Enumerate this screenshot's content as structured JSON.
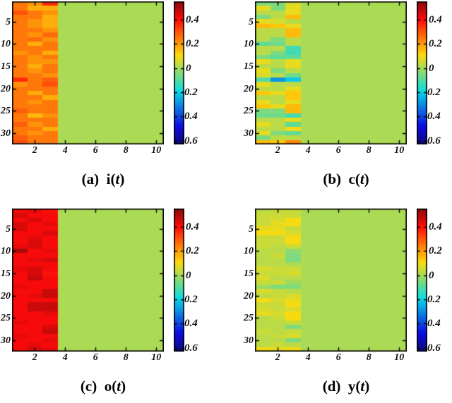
{
  "figure": {
    "background": "#ffffff",
    "colormap": "jet",
    "caxis": {
      "vmin": -0.63,
      "vmax": 0.55
    },
    "axes": {
      "x_ticks": [
        "2",
        "4",
        "6",
        "8",
        "10"
      ],
      "x_tick_values": [
        2,
        4,
        6,
        8,
        10
      ],
      "x_range": [
        0.5,
        10.5
      ],
      "y_ticks": [
        "5",
        "10",
        "15",
        "20",
        "25",
        "30"
      ],
      "y_tick_values": [
        5,
        10,
        15,
        20,
        25,
        30
      ],
      "y_range": [
        0.5,
        32.5
      ],
      "tick_color": "#000000",
      "frame_color": "#000000"
    },
    "colorbar": {
      "tick_labels": [
        "0.4",
        "0.2",
        "0",
        "-0.2",
        "-0.4",
        "-0.6"
      ],
      "tick_values": [
        0.4,
        0.2,
        0,
        -0.2,
        -0.4,
        -0.6
      ]
    },
    "zero_color_hint": "#a8d050",
    "grid": false
  },
  "chart_data": [
    {
      "type": "heatmap",
      "id": "a",
      "caption_text": "(a) i(t)",
      "caption": {
        "prefix": "(a)",
        "symbol": "i",
        "open": "(",
        "var": "t",
        "close": ")"
      },
      "n_rows": 32,
      "n_cols": 10,
      "fill_value": 0,
      "note": "columns 4-10 uniformly 0 (green); values below are columns 1-3 per row",
      "first3cols": [
        [
          0.24,
          0.21,
          0.36
        ],
        [
          0.24,
          0.18,
          0.17
        ],
        [
          0.31,
          0.24,
          0.21
        ],
        [
          0.25,
          0.24,
          0.17
        ],
        [
          0.24,
          0.21,
          0.18
        ],
        [
          0.24,
          0.2,
          0.17
        ],
        [
          0.24,
          0.24,
          0.2
        ],
        [
          0.24,
          0.2,
          0.26
        ],
        [
          0.24,
          0.27,
          0.21
        ],
        [
          0.24,
          0.18,
          0.24
        ],
        [
          0.24,
          0.25,
          0.24
        ],
        [
          0.21,
          0.24,
          0.17
        ],
        [
          0.24,
          0.2,
          0.24
        ],
        [
          0.25,
          0.21,
          0.2
        ],
        [
          0.24,
          0.17,
          0.24
        ],
        [
          0.24,
          0.21,
          0.24
        ],
        [
          0.24,
          0.24,
          0.2
        ],
        [
          0.36,
          0.24,
          0.28
        ],
        [
          0.2,
          0.24,
          0.31
        ],
        [
          0.24,
          0.24,
          0.25
        ],
        [
          0.24,
          0.17,
          0.24
        ],
        [
          0.24,
          0.24,
          0.17
        ],
        [
          0.24,
          0.2,
          0.24
        ],
        [
          0.24,
          0.25,
          0.24
        ],
        [
          0.28,
          0.24,
          0.24
        ],
        [
          0.24,
          0.16,
          0.2
        ],
        [
          0.24,
          0.24,
          0.25
        ],
        [
          0.28,
          0.2,
          0.24
        ],
        [
          0.24,
          0.24,
          0.18
        ],
        [
          0.24,
          0.2,
          0.24
        ],
        [
          0.28,
          0.24,
          0.24
        ],
        [
          0.31,
          0.24,
          0.25
        ]
      ]
    },
    {
      "type": "heatmap",
      "id": "b",
      "caption_text": "(b) c(t)",
      "caption": {
        "prefix": "(b)",
        "symbol": "c",
        "open": "(",
        "var": "t",
        "close": ")"
      },
      "n_rows": 32,
      "n_cols": 10,
      "fill_value": 0,
      "note": "columns 4-10 uniformly 0 (green); values below are columns 1-3 per row",
      "first3cols": [
        [
          -0.05,
          -0.05,
          0.07
        ],
        [
          0.08,
          -0.05,
          0.08
        ],
        [
          0.02,
          0.02,
          0.08
        ],
        [
          -0.04,
          0.02,
          0.15
        ],
        [
          0.08,
          0.07,
          0.02
        ],
        [
          0.15,
          0.13,
          0.08
        ],
        [
          0.03,
          0.02,
          0.15
        ],
        [
          0.02,
          0.02,
          0.15
        ],
        [
          0.02,
          -0.05,
          0.02
        ],
        [
          -0.08,
          -0.06,
          0.02
        ],
        [
          0.02,
          0.02,
          -0.12
        ],
        [
          0.02,
          -0.05,
          -0.12
        ],
        [
          -0.05,
          -0.08,
          -0.08
        ],
        [
          0.08,
          0.02,
          0.08
        ],
        [
          0.02,
          0.02,
          0.08
        ],
        [
          0.08,
          -0.05,
          0.02
        ],
        [
          0.06,
          0.02,
          -0.07
        ],
        [
          -0.1,
          -0.28,
          -0.22
        ],
        [
          0.08,
          0.02,
          0.02
        ],
        [
          0.02,
          0.02,
          0.08
        ],
        [
          0.13,
          0.08,
          0.13
        ],
        [
          0.02,
          0.02,
          0.14
        ],
        [
          0.08,
          0.02,
          0.08
        ],
        [
          0.13,
          0.08,
          0.16
        ],
        [
          -0.05,
          -0.05,
          0.15
        ],
        [
          -0.06,
          -0.06,
          -0.13
        ],
        [
          0.03,
          0.03,
          0.08
        ],
        [
          0.08,
          0.02,
          -0.08
        ],
        [
          0.02,
          0.02,
          0.1
        ],
        [
          0.08,
          -0.05,
          -0.09
        ],
        [
          -0.05,
          0.02,
          0.02
        ],
        [
          0.15,
          0.13,
          0.23
        ]
      ]
    },
    {
      "type": "heatmap",
      "id": "c",
      "caption_text": "(c) o(t)",
      "caption": {
        "prefix": "(c)",
        "symbol": "o",
        "open": "(",
        "var": "t",
        "close": ")"
      },
      "n_rows": 32,
      "n_cols": 10,
      "fill_value": 0,
      "note": "columns 4-10 uniformly 0 (green); values below are columns 1-3 per row",
      "first3cols": [
        [
          0.42,
          0.43,
          0.4
        ],
        [
          0.44,
          0.42,
          0.42
        ],
        [
          0.42,
          0.44,
          0.42
        ],
        [
          0.45,
          0.42,
          0.43
        ],
        [
          0.44,
          0.42,
          0.42
        ],
        [
          0.42,
          0.42,
          0.44
        ],
        [
          0.42,
          0.43,
          0.42
        ],
        [
          0.42,
          0.44,
          0.42
        ],
        [
          0.43,
          0.44,
          0.42
        ],
        [
          0.5,
          0.42,
          0.43
        ],
        [
          0.42,
          0.42,
          0.42
        ],
        [
          0.42,
          0.43,
          0.44
        ],
        [
          0.42,
          0.42,
          0.42
        ],
        [
          0.43,
          0.44,
          0.42
        ],
        [
          0.42,
          0.44,
          0.4
        ],
        [
          0.42,
          0.46,
          0.42
        ],
        [
          0.42,
          0.42,
          0.42
        ],
        [
          0.43,
          0.42,
          0.42
        ],
        [
          0.42,
          0.42,
          0.47
        ],
        [
          0.42,
          0.43,
          0.46
        ],
        [
          0.42,
          0.42,
          0.42
        ],
        [
          0.42,
          0.46,
          0.47
        ],
        [
          0.42,
          0.46,
          0.46
        ],
        [
          0.42,
          0.42,
          0.43
        ],
        [
          0.42,
          0.42,
          0.42
        ],
        [
          0.43,
          0.42,
          0.42
        ],
        [
          0.42,
          0.42,
          0.45
        ],
        [
          0.42,
          0.42,
          0.46
        ],
        [
          0.43,
          0.42,
          0.42
        ],
        [
          0.42,
          0.42,
          0.43
        ],
        [
          0.42,
          0.43,
          0.42
        ],
        [
          0.42,
          0.44,
          0.43
        ]
      ]
    },
    {
      "type": "heatmap",
      "id": "d",
      "caption_text": "(d) y(t)",
      "caption": {
        "prefix": "(d)",
        "symbol": "y",
        "open": "(",
        "var": "t",
        "close": ")"
      },
      "n_rows": 32,
      "n_cols": 10,
      "fill_value": 0,
      "note": "columns 4-10 uniformly 0 (green); values below are columns 1-3 per row",
      "first3cols": [
        [
          0.03,
          0.05,
          0.04
        ],
        [
          0.05,
          0.05,
          0.04
        ],
        [
          0.04,
          0.06,
          0.1
        ],
        [
          0.05,
          0.08,
          0.1
        ],
        [
          0.08,
          0.08,
          0.04
        ],
        [
          0.1,
          0.09,
          0.06
        ],
        [
          0.04,
          0.04,
          0.1
        ],
        [
          0.04,
          0.04,
          0.1
        ],
        [
          0.04,
          0.03,
          0.04
        ],
        [
          0.02,
          0.03,
          -0.03
        ],
        [
          0.03,
          0.04,
          -0.04
        ],
        [
          0.03,
          0.03,
          -0.04
        ],
        [
          0.02,
          0.02,
          0.0
        ],
        [
          0.06,
          0.04,
          0.05
        ],
        [
          0.04,
          0.04,
          0.06
        ],
        [
          0.06,
          0.03,
          0.03
        ],
        [
          0.05,
          0.04,
          -0.02
        ],
        [
          -0.02,
          -0.04,
          -0.04
        ],
        [
          0.06,
          0.04,
          0.03
        ],
        [
          0.03,
          0.04,
          0.06
        ],
        [
          0.09,
          0.07,
          0.08
        ],
        [
          0.04,
          0.04,
          0.09
        ],
        [
          0.06,
          0.04,
          0.06
        ],
        [
          0.08,
          0.06,
          0.1
        ],
        [
          0.03,
          0.04,
          0.1
        ],
        [
          0.02,
          0.02,
          0.04
        ],
        [
          0.03,
          0.03,
          -0.05
        ],
        [
          0.04,
          0.03,
          0.05
        ],
        [
          0.03,
          0.04,
          0.06
        ],
        [
          0.03,
          0.03,
          -0.04
        ],
        [
          0.03,
          0.04,
          0.03
        ],
        [
          0.09,
          0.08,
          0.1
        ]
      ]
    }
  ]
}
